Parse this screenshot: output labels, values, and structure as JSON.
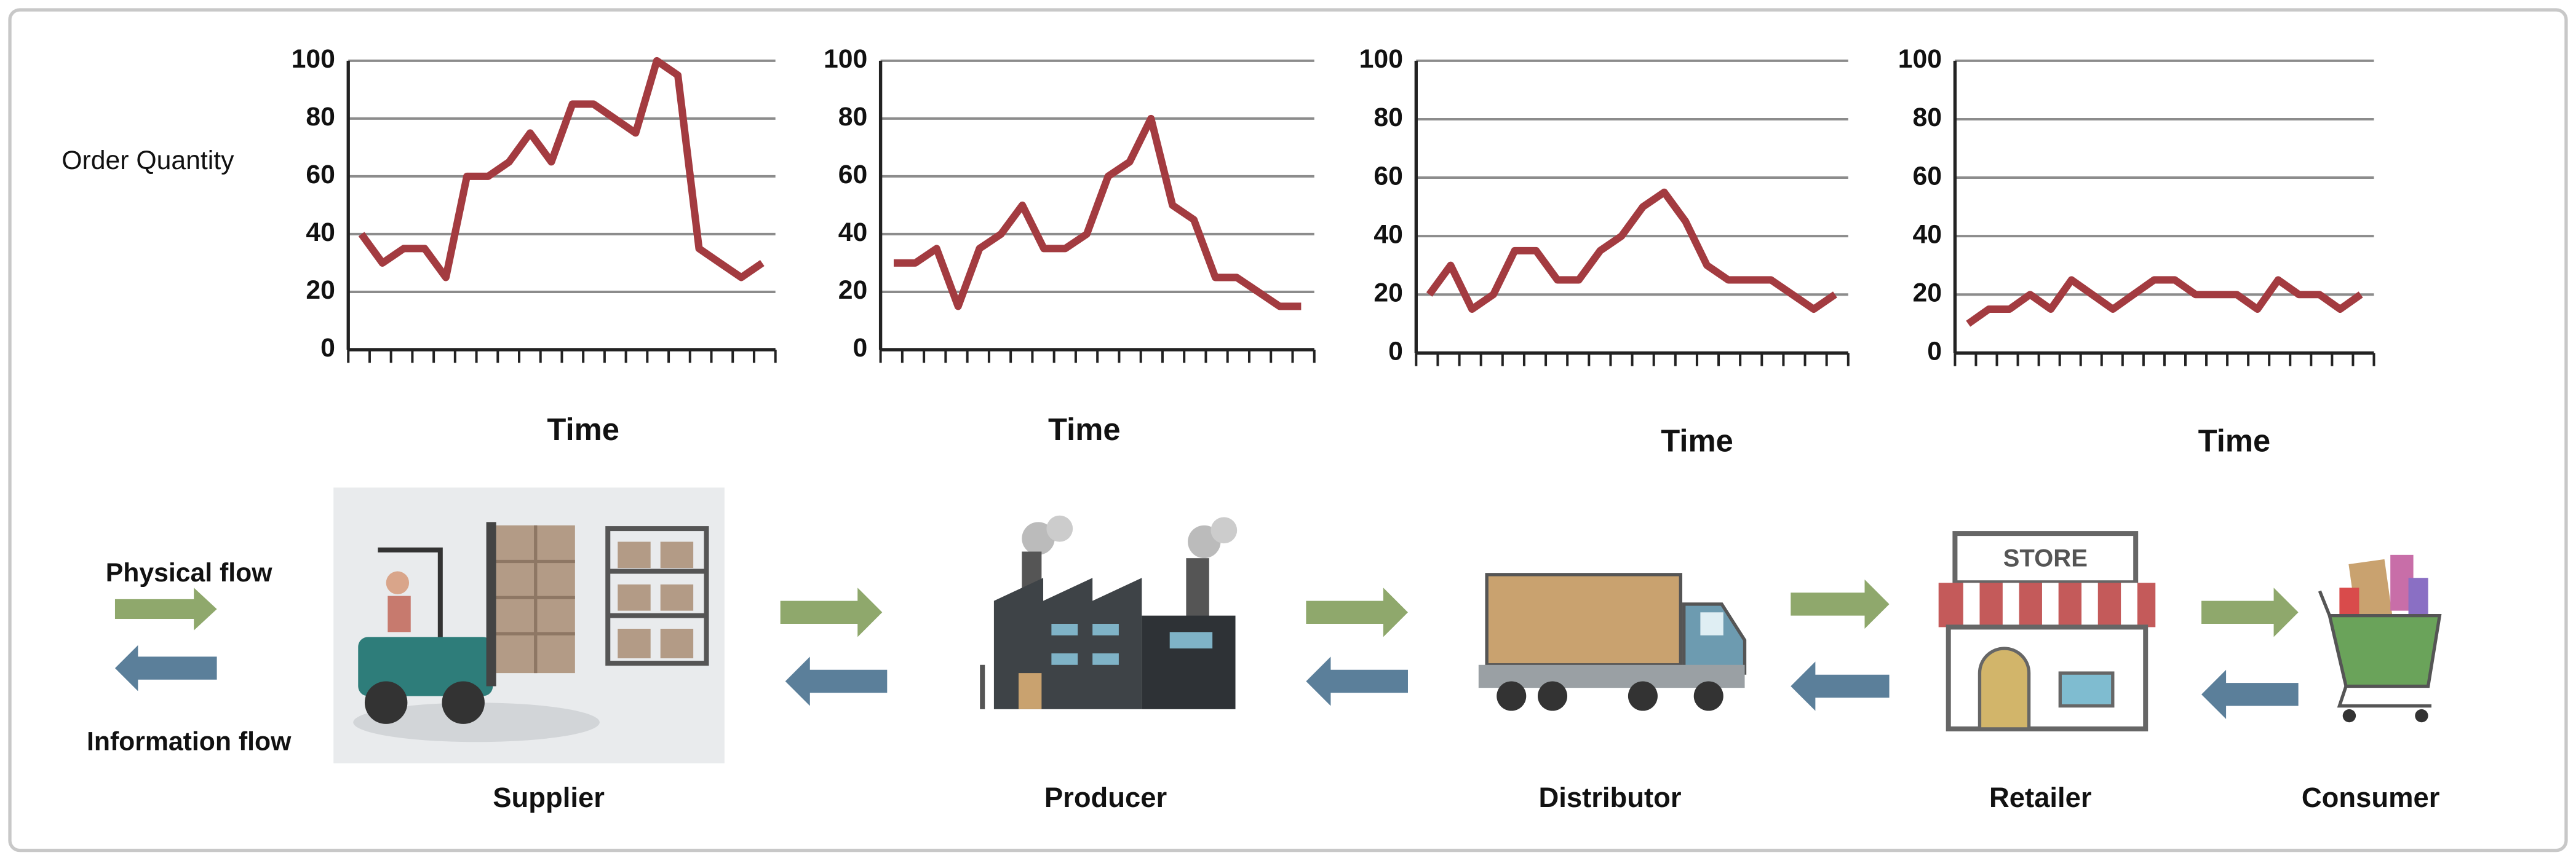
{
  "chart_data": [
    {
      "type": "line",
      "ylabel": "Order Quantity",
      "xlabel": "Time",
      "color": "#a33b40",
      "ylim": [
        0,
        100
      ],
      "yticks": [
        0,
        20,
        40,
        60,
        80,
        100
      ],
      "grid": true,
      "values": [
        40,
        30,
        35,
        35,
        25,
        60,
        60,
        65,
        75,
        65,
        85,
        85,
        80,
        75,
        100,
        95,
        35,
        30,
        25,
        30
      ]
    },
    {
      "type": "line",
      "xlabel": "Time",
      "color": "#a33b40",
      "ylim": [
        0,
        100
      ],
      "yticks": [
        0,
        20,
        40,
        60,
        80,
        100
      ],
      "grid": true,
      "values": [
        30,
        30,
        35,
        15,
        35,
        40,
        50,
        35,
        35,
        40,
        60,
        65,
        80,
        50,
        45,
        25,
        25,
        20,
        15,
        15
      ]
    },
    {
      "type": "line",
      "xlabel": "Time",
      "color": "#a33b40",
      "ylim": [
        0,
        100
      ],
      "yticks": [
        0,
        20,
        40,
        60,
        80,
        100
      ],
      "grid": true,
      "values": [
        20,
        30,
        15,
        20,
        35,
        35,
        25,
        25,
        35,
        40,
        50,
        55,
        45,
        30,
        25,
        25,
        25,
        20,
        15,
        20
      ]
    },
    {
      "type": "line",
      "xlabel": "Time",
      "color": "#a33b40",
      "ylim": [
        0,
        100
      ],
      "yticks": [
        0,
        20,
        40,
        60,
        80,
        100
      ],
      "grid": true,
      "values": [
        10,
        15,
        15,
        20,
        15,
        25,
        20,
        15,
        20,
        25,
        25,
        20,
        20,
        20,
        15,
        25,
        20,
        20,
        15,
        20
      ]
    }
  ],
  "flows": {
    "physical": "Physical flow",
    "information": "Information flow"
  },
  "nodes": [
    {
      "label": "Supplier"
    },
    {
      "label": "Producer"
    },
    {
      "label": "Distributor"
    },
    {
      "label": "Retailer",
      "sign": "STORE"
    },
    {
      "label": "Consumer"
    }
  ]
}
